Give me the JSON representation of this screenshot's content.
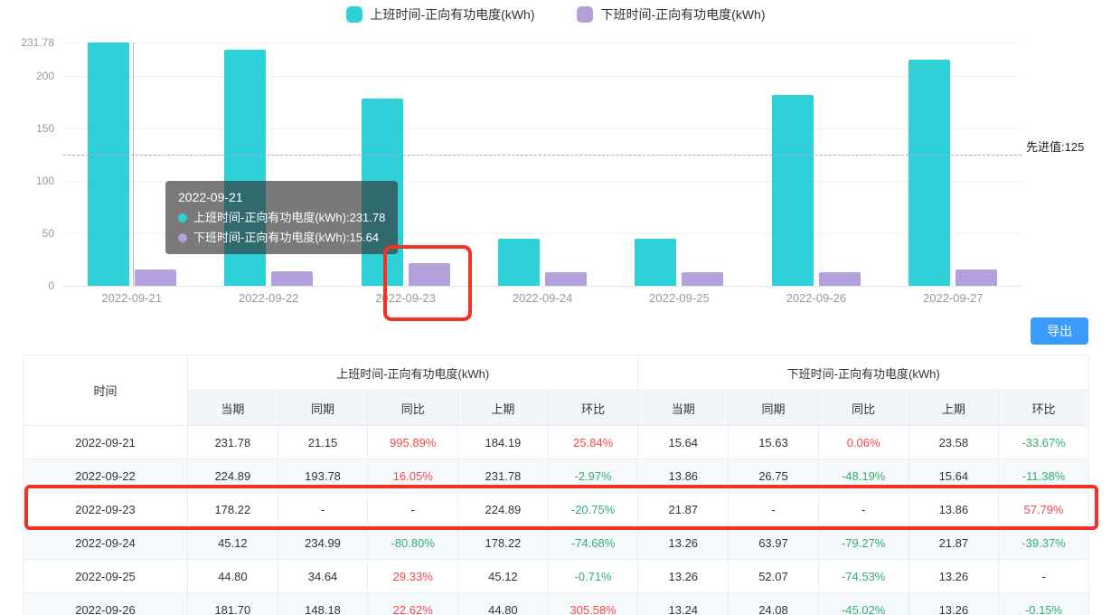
{
  "legend": {
    "items": [
      {
        "label": "上班时间-正向有功电度(kWh)",
        "color": "#2cd0d6"
      },
      {
        "label": "下班时间-正向有功电度(kWh)",
        "color": "#b4a1dc"
      }
    ]
  },
  "chart_data": {
    "type": "bar",
    "title": "",
    "categories": [
      "2022-09-21",
      "2022-09-22",
      "2022-09-23",
      "2022-09-24",
      "2022-09-25",
      "2022-09-26",
      "2022-09-27"
    ],
    "series": [
      {
        "name": "上班时间-正向有功电度(kWh)",
        "color": "#2cd0d6",
        "values": [
          231.78,
          224.89,
          178.22,
          45.12,
          44.8,
          181.7,
          215
        ]
      },
      {
        "name": "下班时间-正向有功电度(kWh)",
        "color": "#b4a1dc",
        "values": [
          15.64,
          13.86,
          21.87,
          13.26,
          13.26,
          13.24,
          15.5
        ]
      }
    ],
    "ylim": [
      0,
      231.78
    ],
    "y_axis": {
      "ticks": [
        {
          "value": 0,
          "label": "0"
        },
        {
          "value": 50,
          "label": "50"
        },
        {
          "value": 100,
          "label": "100"
        },
        {
          "value": 150,
          "label": "150"
        },
        {
          "value": 200,
          "label": "200"
        },
        {
          "value": 231.78,
          "label": "231.78"
        }
      ]
    },
    "markline": {
      "value": 125,
      "label": "先进值:125",
      "color": "#a9a6e3"
    },
    "axis_pointer": {
      "category_index": 0
    },
    "grid": true,
    "legend_position": "top"
  },
  "tooltip": {
    "title": "2022-09-21",
    "lines": [
      {
        "color": "#2cd0d6",
        "text": "上班时间-正向有功电度(kWh):231.78"
      },
      {
        "color": "#b4a1dc",
        "text": "下班时间-正向有功电度(kWh):15.64"
      }
    ]
  },
  "export_button": {
    "label": "导出",
    "color": "#3b9bfa"
  },
  "table": {
    "time_header": "时间",
    "group_headers": [
      "上班时间-正向有功电度(kWh)",
      "下班时间-正向有功电度(kWh)"
    ],
    "sub_headers": [
      "当期",
      "同期",
      "同比",
      "上期",
      "环比"
    ],
    "rows": [
      {
        "date": "2022-09-21",
        "highlight": false,
        "cells": [
          [
            "231.78",
            ""
          ],
          [
            "21.15",
            ""
          ],
          [
            "995.89%",
            "up"
          ],
          [
            "184.19",
            ""
          ],
          [
            "25.84%",
            "up"
          ],
          [
            "15.64",
            ""
          ],
          [
            "15.63",
            ""
          ],
          [
            "0.06%",
            "up"
          ],
          [
            "23.58",
            ""
          ],
          [
            "-33.67%",
            "down"
          ]
        ]
      },
      {
        "date": "2022-09-22",
        "highlight": false,
        "cells": [
          [
            "224.89",
            ""
          ],
          [
            "193.78",
            ""
          ],
          [
            "16.05%",
            "up"
          ],
          [
            "231.78",
            ""
          ],
          [
            "-2.97%",
            "down"
          ],
          [
            "13.86",
            ""
          ],
          [
            "26.75",
            ""
          ],
          [
            "-48.19%",
            "down"
          ],
          [
            "15.64",
            ""
          ],
          [
            "-11.38%",
            "down"
          ]
        ]
      },
      {
        "date": "2022-09-23",
        "highlight": true,
        "cells": [
          [
            "178.22",
            ""
          ],
          [
            "-",
            ""
          ],
          [
            "-",
            ""
          ],
          [
            "224.89",
            ""
          ],
          [
            "-20.75%",
            "down"
          ],
          [
            "21.87",
            ""
          ],
          [
            "-",
            ""
          ],
          [
            "-",
            ""
          ],
          [
            "13.86",
            ""
          ],
          [
            "57.79%",
            "up"
          ]
        ]
      },
      {
        "date": "2022-09-24",
        "highlight": false,
        "cells": [
          [
            "45.12",
            ""
          ],
          [
            "234.99",
            ""
          ],
          [
            "-80.80%",
            "down"
          ],
          [
            "178.22",
            ""
          ],
          [
            "-74.68%",
            "down"
          ],
          [
            "13.26",
            ""
          ],
          [
            "63.97",
            ""
          ],
          [
            "-79.27%",
            "down"
          ],
          [
            "21.87",
            ""
          ],
          [
            "-39.37%",
            "down"
          ]
        ]
      },
      {
        "date": "2022-09-25",
        "highlight": false,
        "cells": [
          [
            "44.80",
            ""
          ],
          [
            "34.64",
            ""
          ],
          [
            "29.33%",
            "up"
          ],
          [
            "45.12",
            ""
          ],
          [
            "-0.71%",
            "down"
          ],
          [
            "13.26",
            ""
          ],
          [
            "52.07",
            ""
          ],
          [
            "-74.53%",
            "down"
          ],
          [
            "13.26",
            ""
          ],
          [
            "-",
            ""
          ]
        ]
      },
      {
        "date": "2022-09-26",
        "highlight": false,
        "cells": [
          [
            "181.70",
            ""
          ],
          [
            "148.18",
            ""
          ],
          [
            "22.62%",
            "up"
          ],
          [
            "44.80",
            ""
          ],
          [
            "305.58%",
            "up"
          ],
          [
            "13.24",
            ""
          ],
          [
            "24.08",
            ""
          ],
          [
            "-45.02%",
            "down"
          ],
          [
            "13.26",
            ""
          ],
          [
            "-0.15%",
            "down"
          ]
        ]
      }
    ]
  },
  "colors": {
    "up_text": "#f2494e",
    "down_text": "#2fae74",
    "annotation": "#f53126",
    "axis_label": "#999999",
    "grid_line": "#edf0f4"
  }
}
